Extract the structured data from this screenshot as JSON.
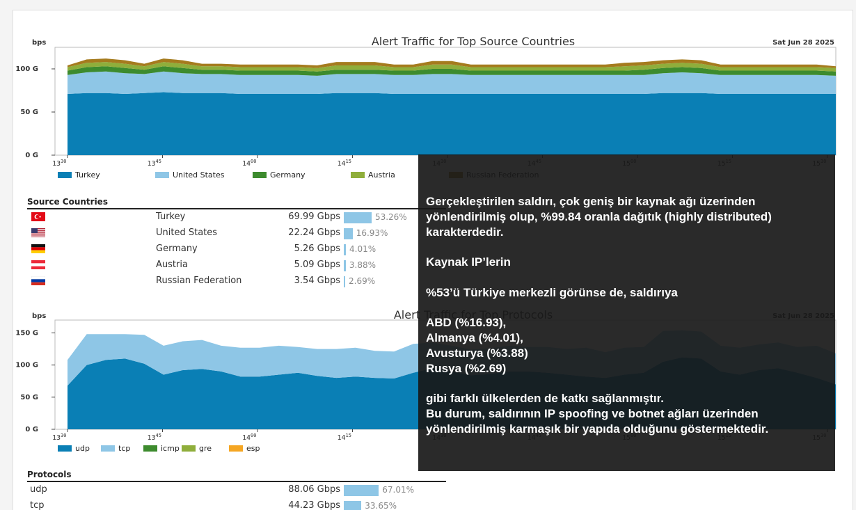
{
  "source_chart": {
    "title": "Alert Traffic for Top Source Countries",
    "date": "Sat Jun 28 2025",
    "unit": "bps",
    "yticks": [
      "100 G",
      "50 G",
      "0 G"
    ],
    "legend": [
      {
        "label": "Turkey",
        "color": "#0a7fb5"
      },
      {
        "label": "United States",
        "color": "#8ec6e6"
      },
      {
        "label": "Germany",
        "color": "#3d8b2e"
      },
      {
        "label": "Austria",
        "color": "#8fae3b"
      },
      {
        "label": "Russian Federation",
        "color": "#a57b1e"
      }
    ]
  },
  "protocol_chart": {
    "title": "Alert Traffic for Top Protocols",
    "date": "Sat Jun 28 2025",
    "unit": "bps",
    "yticks": [
      "150 G",
      "100 G",
      "50 G",
      "0 G"
    ],
    "legend": [
      {
        "label": "udp",
        "color": "#0a7fb5"
      },
      {
        "label": "tcp",
        "color": "#8ec6e6"
      },
      {
        "label": "icmp",
        "color": "#3d8b2e"
      },
      {
        "label": "gre",
        "color": "#8fae3b"
      },
      {
        "label": "esp",
        "color": "#f5a623"
      }
    ]
  },
  "xticks": [
    {
      "h": "13",
      "m": "30"
    },
    {
      "h": "13",
      "m": "45"
    },
    {
      "h": "14",
      "m": "00"
    },
    {
      "h": "14",
      "m": "15"
    },
    {
      "h": "14",
      "m": "30"
    },
    {
      "h": "14",
      "m": "45"
    },
    {
      "h": "15",
      "m": "00"
    },
    {
      "h": "15",
      "m": "15"
    },
    {
      "h": "15",
      "m": "30"
    }
  ],
  "chart_data": [
    {
      "type": "area",
      "title": "Alert Traffic for Top Source Countries",
      "ylabel": "bps",
      "ylim": [
        0,
        125
      ],
      "x": [
        "13:30",
        "13:33",
        "13:36",
        "13:39",
        "13:42",
        "13:45",
        "13:48",
        "13:51",
        "13:54",
        "13:57",
        "14:00",
        "14:03",
        "14:06",
        "14:09",
        "14:12",
        "14:15",
        "14:18",
        "14:21",
        "14:24",
        "14:27",
        "14:30",
        "14:33",
        "14:36",
        "14:39",
        "14:42",
        "14:45",
        "14:48",
        "14:51",
        "14:54",
        "14:57",
        "15:00",
        "15:03",
        "15:06",
        "15:09",
        "15:12",
        "15:15",
        "15:18",
        "15:21",
        "15:24",
        "15:27",
        "15:30"
      ],
      "series": [
        {
          "name": "Turkey",
          "values": [
            71,
            72,
            72,
            71,
            72,
            73,
            72,
            72,
            72,
            71,
            71,
            71,
            71,
            71,
            72,
            72,
            72,
            71,
            71,
            71,
            71,
            71,
            71,
            71,
            71,
            71,
            71,
            71,
            71,
            71,
            71,
            72,
            72,
            72,
            71,
            71,
            71,
            71,
            71,
            71,
            71
          ]
        },
        {
          "name": "United States",
          "values": [
            22,
            24,
            25,
            24,
            22,
            24,
            23,
            22,
            22,
            22,
            22,
            22,
            22,
            21,
            22,
            22,
            22,
            22,
            22,
            23,
            23,
            22,
            22,
            22,
            22,
            22,
            22,
            22,
            22,
            22,
            22,
            23,
            24,
            23,
            22,
            22,
            22,
            22,
            22,
            22,
            21
          ]
        },
        {
          "name": "Germany",
          "values": [
            5,
            6,
            6,
            6,
            5,
            6,
            6,
            5,
            5,
            5,
            5,
            5,
            5,
            5,
            5,
            5,
            5,
            5,
            5,
            6,
            6,
            5,
            5,
            5,
            5,
            5,
            5,
            5,
            5,
            5,
            6,
            6,
            6,
            6,
            5,
            5,
            5,
            5,
            5,
            5,
            5
          ]
        },
        {
          "name": "Austria",
          "values": [
            4,
            5,
            5,
            5,
            4,
            5,
            5,
            4,
            4,
            4,
            4,
            4,
            4,
            4,
            5,
            5,
            5,
            4,
            4,
            5,
            5,
            4,
            4,
            4,
            4,
            4,
            4,
            4,
            4,
            5,
            5,
            5,
            5,
            5,
            4,
            4,
            4,
            4,
            4,
            4,
            4
          ]
        },
        {
          "name": "Russian Federation",
          "values": [
            2,
            4,
            4,
            4,
            3,
            4,
            4,
            3,
            3,
            3,
            3,
            3,
            3,
            3,
            4,
            4,
            4,
            3,
            3,
            4,
            4,
            3,
            3,
            3,
            3,
            3,
            3,
            3,
            3,
            4,
            4,
            4,
            4,
            4,
            3,
            3,
            3,
            3,
            3,
            3,
            2
          ]
        }
      ]
    },
    {
      "type": "area",
      "title": "Alert Traffic for Top Protocols",
      "ylabel": "bps",
      "ylim": [
        0,
        170
      ],
      "x": [
        "13:30",
        "13:33",
        "13:36",
        "13:39",
        "13:42",
        "13:45",
        "13:48",
        "13:51",
        "13:54",
        "13:57",
        "14:00",
        "14:03",
        "14:06",
        "14:09",
        "14:12",
        "14:15",
        "14:18",
        "14:21",
        "14:24",
        "14:27",
        "14:30",
        "14:33",
        "14:36",
        "14:39",
        "14:42",
        "14:45",
        "14:48",
        "14:51",
        "14:54",
        "14:57",
        "15:00",
        "15:03",
        "15:06",
        "15:09",
        "15:12",
        "15:15",
        "15:18",
        "15:21",
        "15:24",
        "15:27",
        "15:30"
      ],
      "series": [
        {
          "name": "udp",
          "values": [
            68,
            100,
            108,
            110,
            102,
            85,
            92,
            94,
            90,
            82,
            82,
            85,
            88,
            83,
            80,
            82,
            80,
            79,
            88,
            95,
            90,
            84,
            86,
            90,
            90,
            88,
            85,
            82,
            80,
            85,
            88,
            105,
            112,
            110,
            90,
            85,
            92,
            95,
            88,
            80,
            70
          ]
        },
        {
          "name": "tcp",
          "values": [
            40,
            48,
            40,
            38,
            45,
            45,
            45,
            45,
            40,
            45,
            45,
            45,
            40,
            42,
            45,
            45,
            42,
            42,
            45,
            40,
            40,
            40,
            40,
            40,
            38,
            40,
            40,
            45,
            40,
            42,
            40,
            48,
            42,
            42,
            40,
            42,
            40,
            40,
            40,
            50,
            48
          ]
        },
        {
          "name": "icmp",
          "values": [
            0,
            0,
            0,
            0,
            0,
            0,
            0,
            0,
            0,
            0,
            0,
            0,
            0,
            0,
            0,
            0,
            0,
            0,
            0,
            0,
            0,
            0,
            0,
            0,
            0,
            0,
            0,
            0,
            0,
            0,
            0,
            0,
            0,
            0,
            0,
            0,
            0,
            0,
            0,
            0,
            0
          ]
        },
        {
          "name": "gre",
          "values": [
            0,
            0,
            0,
            0,
            0,
            0,
            0,
            0,
            0,
            0,
            0,
            0,
            0,
            0,
            0,
            0,
            0,
            0,
            0,
            0,
            0,
            0,
            0,
            0,
            0,
            0,
            0,
            0,
            0,
            0,
            0,
            0,
            0,
            0,
            0,
            0,
            0,
            0,
            0,
            0,
            0
          ]
        },
        {
          "name": "esp",
          "values": [
            0,
            0,
            0,
            0,
            0,
            0,
            0,
            0,
            0,
            0,
            0,
            0,
            0,
            0,
            0,
            0,
            0,
            0,
            0,
            0,
            0,
            0,
            0,
            0,
            0,
            0,
            0,
            0,
            0,
            0,
            0,
            0,
            0,
            0,
            0,
            0,
            0,
            0,
            0,
            0,
            0
          ]
        }
      ]
    }
  ],
  "source_table": {
    "heading": "Source Countries",
    "rows": [
      {
        "name": "Turkey",
        "value": "69.99 Gbps",
        "pct": "53.26%",
        "pct_num": 53.26,
        "flag": "turkey-flag-icon"
      },
      {
        "name": "United States",
        "value": "22.24 Gbps",
        "pct": "16.93%",
        "pct_num": 16.93,
        "flag": "us-flag-icon"
      },
      {
        "name": "Germany",
        "value": "5.26 Gbps",
        "pct": "4.01%",
        "pct_num": 4.01,
        "flag": "germany-flag-icon"
      },
      {
        "name": "Austria",
        "value": "5.09 Gbps",
        "pct": "3.88%",
        "pct_num": 3.88,
        "flag": "austria-flag-icon"
      },
      {
        "name": "Russian Federation",
        "value": "3.54 Gbps",
        "pct": "2.69%",
        "pct_num": 2.69,
        "flag": "russia-flag-icon"
      }
    ]
  },
  "protocol_table": {
    "heading": "Protocols",
    "rows": [
      {
        "name": "udp",
        "value": "88.06 Gbps",
        "pct": "67.01%",
        "pct_num": 67.01
      },
      {
        "name": "tcp",
        "value": "44.23 Gbps",
        "pct": "33.65%",
        "pct_num": 33.65
      }
    ]
  },
  "overlay_text": "Gerçekleştirilen saldırı, çok geniş bir kaynak ağı üzerinden\nyönlendirilmiş olup, %99.84 oranla dağıtık (highly distributed)\nkarakterdedir.\n\nKaynak IP’lerin\n\n%53’ü Türkiye merkezli görünse de, saldırıya\n\nABD (%16.93),\nAlmanya (%4.01),\nAvusturya (%3.88)\nRusya (%2.69)\n\ngibi farklı ülkelerden de katkı sağlanmıştır.\nBu durum, saldırının IP spoofing ve botnet ağları üzerinden\nyönlendirilmiş karmaşık bir yapıda olduğunu göstermektedir."
}
